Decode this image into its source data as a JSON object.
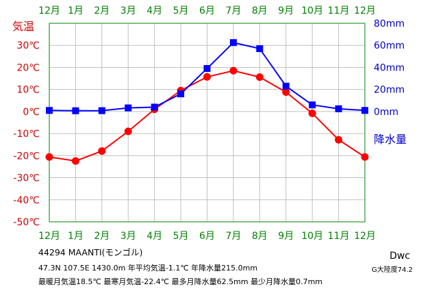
{
  "station": {
    "id_name": "44294  MAANTI(モンゴル)",
    "coords_line": "47.3N  107.5E  1430.0m  年平均気温-1.1℃  年降水量215.0mm",
    "extremes_line": "最暖月気温18.5℃  最寒月気温-22.4℃  最多月降水量62.5mm  最少月降水量0.7mm",
    "climate_code": "Dwc",
    "region_label": "G大陸度74.2"
  },
  "colors": {
    "frame": "#008000",
    "temperature": "#ff0000",
    "precipitation": "#0000ff",
    "temp_axis_text": "#cc0000",
    "precip_axis_text": "#0000cc",
    "month_text": "#008000"
  },
  "chart_data": {
    "type": "line",
    "months": [
      "12月",
      "1月",
      "2月",
      "3月",
      "4月",
      "5月",
      "6月",
      "7月",
      "8月",
      "9月",
      "10月",
      "11月",
      "12月"
    ],
    "temp_axis": {
      "label": "気温",
      "ticks": [
        "30℃",
        "20℃",
        "10℃",
        "0℃",
        "-10℃",
        "-20℃",
        "-30℃",
        "-40℃",
        "-50℃"
      ],
      "tick_values": [
        30,
        20,
        10,
        0,
        -10,
        -20,
        -30,
        -40,
        -50
      ],
      "ylim": [
        -50,
        40
      ]
    },
    "precip_axis": {
      "label": "降水量",
      "ticks": [
        "80mm",
        "60mm",
        "40mm",
        "20mm",
        "0mm"
      ],
      "tick_values": [
        80,
        60,
        40,
        20,
        0
      ],
      "ylim": [
        0,
        80
      ]
    },
    "grid": true,
    "series": [
      {
        "kind": "temperature",
        "marker": "circle",
        "values": [
          -20.6,
          -22.4,
          -17.9,
          -9.0,
          1.0,
          9.5,
          15.7,
          18.5,
          15.6,
          8.8,
          -0.8,
          -12.8,
          -20.6
        ]
      },
      {
        "kind": "precipitation",
        "marker": "square",
        "values": [
          1.0,
          0.7,
          0.8,
          3.3,
          4.0,
          16.0,
          39.0,
          62.5,
          57.0,
          23.0,
          6.0,
          2.5,
          1.0
        ]
      }
    ]
  }
}
